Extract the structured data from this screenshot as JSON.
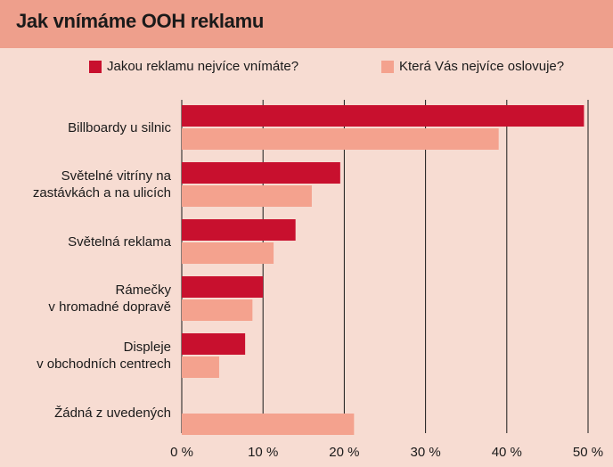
{
  "chart_data": {
    "type": "bar",
    "orientation": "horizontal",
    "title": "Jak vnímáme OOH reklamu",
    "categories": [
      "Billboardy u silnic",
      "Světelné vitríny na\nzastávkách a na ulicích",
      "Světelná reklama",
      "Rámečky\nv hromadné dopravě",
      "Displeje\nv obchodních centrech",
      "Žádná z uvedených"
    ],
    "series": [
      {
        "name": "Jakou reklamu nejvíce vnímáte?",
        "color": "#c8102e",
        "values": [
          49.5,
          19.5,
          14.0,
          10.0,
          7.8,
          0
        ]
      },
      {
        "name": "Která Vás nejvíce oslovuje?",
        "color": "#f4a28e",
        "values": [
          39.0,
          16.0,
          11.3,
          8.7,
          4.6,
          21.2
        ]
      }
    ],
    "x_ticks": [
      "0 %",
      "10 %",
      "20 %",
      "30 %",
      "40 %",
      "50 %"
    ],
    "xlim": [
      0,
      50
    ],
    "grid": true,
    "legend_position": "top"
  }
}
